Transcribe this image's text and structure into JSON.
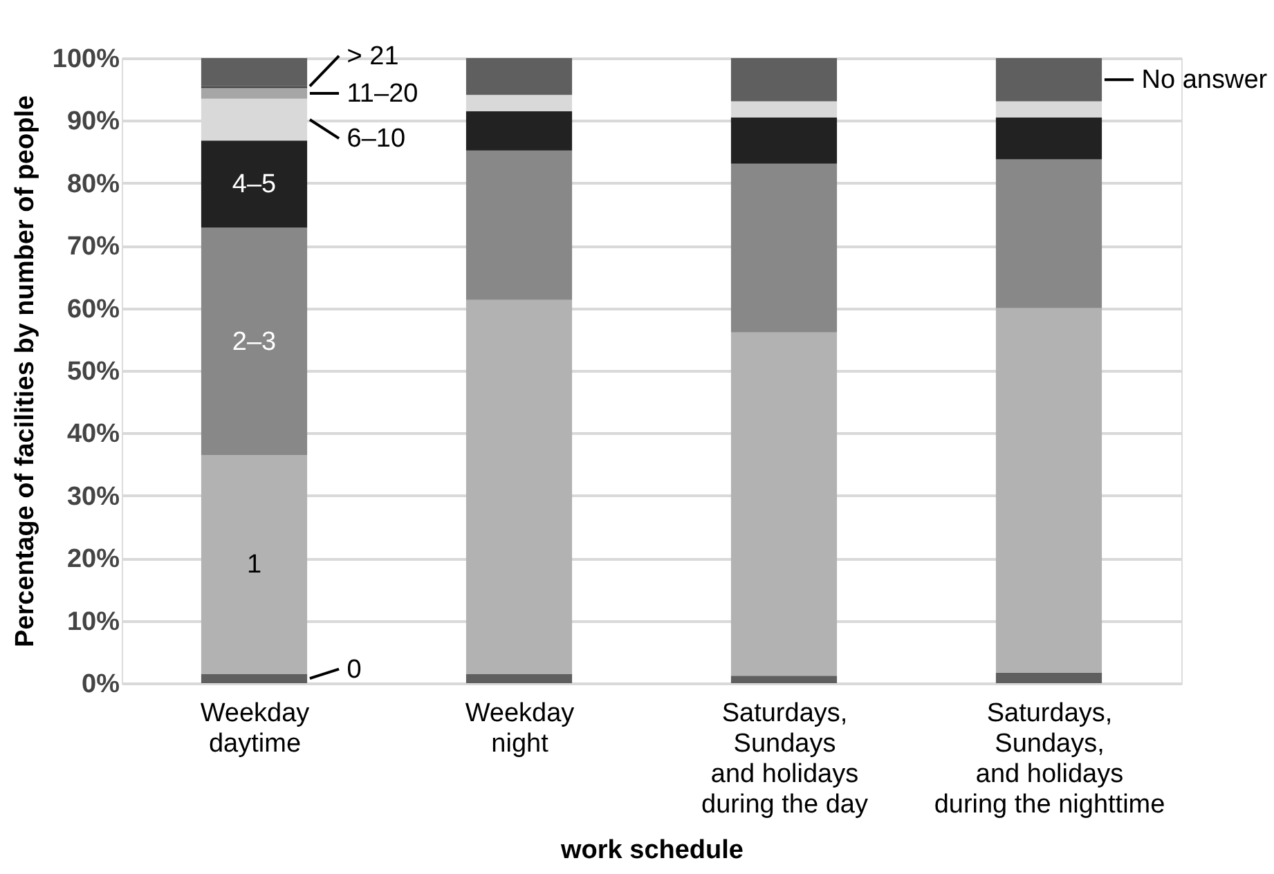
{
  "chart_data": {
    "type": "bar",
    "stacked": true,
    "xlabel": "work schedule",
    "ylabel": "Percentage of facilities by number of people",
    "categories": [
      "Weekday\ndaytime",
      "Weekday\nnight",
      "Saturdays,\nSundays\nand holidays\nduring the day",
      "Saturdays,\nSundays,\nand holidays\nduring the nighttime"
    ],
    "series": [
      {
        "name": "0",
        "color": "#5f5f5f",
        "values": [
          1.5,
          1.5,
          1.2,
          1.7
        ]
      },
      {
        "name": "1",
        "color": "#b2b2b2",
        "values": [
          35.0,
          59.8,
          54.9,
          58.3
        ]
      },
      {
        "name": "2–3",
        "color": "#888888",
        "values": [
          36.4,
          23.9,
          27.0,
          23.8
        ]
      },
      {
        "name": "4–5",
        "color": "#222222",
        "values": [
          13.9,
          6.3,
          7.4,
          6.7
        ]
      },
      {
        "name": "6–10",
        "color": "#d9d9d9",
        "values": [
          6.7,
          2.6,
          2.6,
          2.6
        ]
      },
      {
        "name": "11–20",
        "color": "#a6a6a6",
        "values": [
          1.7,
          0,
          0,
          0
        ]
      },
      {
        "name": "> 21",
        "color": "#444444",
        "values": [
          0.3,
          0,
          0,
          0
        ]
      },
      {
        "name": "No answer",
        "color": "#5f5f5f",
        "values": [
          4.5,
          5.9,
          6.9,
          6.9
        ]
      }
    ],
    "ylim": [
      0,
      100
    ],
    "yticks": [
      {
        "value": 0,
        "label": "0%"
      },
      {
        "value": 10,
        "label": "10%"
      },
      {
        "value": 20,
        "label": "20%"
      },
      {
        "value": 30,
        "label": "30%"
      },
      {
        "value": 40,
        "label": "40%"
      },
      {
        "value": 50,
        "label": "50%"
      },
      {
        "value": 60,
        "label": "60%"
      },
      {
        "value": 70,
        "label": "70%"
      },
      {
        "value": 80,
        "label": "80%"
      },
      {
        "value": 90,
        "label": "90%"
      },
      {
        "value": 100,
        "label": "100%"
      }
    ],
    "grid": "y",
    "legend": false
  }
}
